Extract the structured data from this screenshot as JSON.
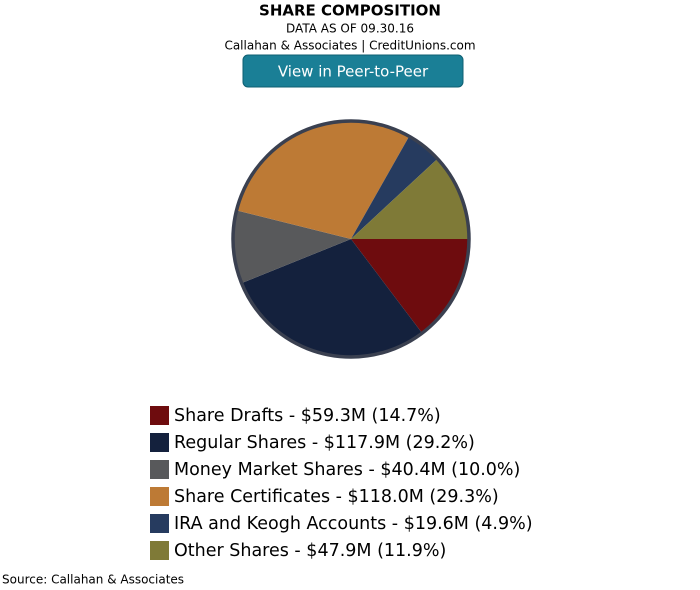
{
  "chart_data": {
    "type": "pie",
    "title": "SHARE COMPOSITION",
    "subtitle": "DATA AS OF 09.30.16",
    "byline": "Callahan & Associates | CreditUnions.com",
    "button": "View in Peer-to-Peer",
    "source": "Source: Callahan & Associates",
    "categories": [
      "Share Drafts - $59.3M (14.7%)",
      "Regular Shares - $117.9M (29.2%)",
      "Money Market Shares - $40.4M (10.0%)",
      "Share Certificates - $118.0M (29.3%)",
      "IRA and Keogh Accounts - $19.6M (4.9%)",
      "Other Shares - $47.9M (11.9%)"
    ],
    "values": [
      14.7,
      29.2,
      10.0,
      29.3,
      4.9,
      11.9
    ],
    "colors": [
      "#6e0c0e",
      "#14213d",
      "#58595b",
      "#bd7a35",
      "#263b5f",
      "#7f7a37"
    ]
  }
}
